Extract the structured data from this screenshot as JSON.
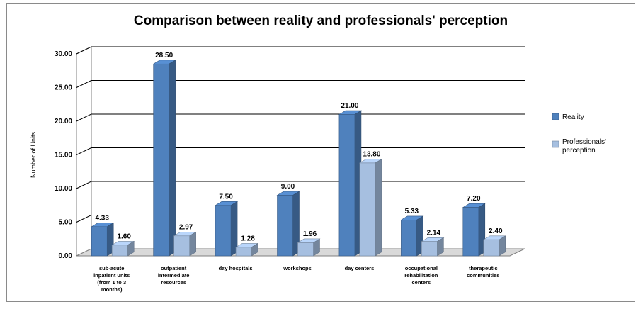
{
  "chart_data": {
    "type": "bar",
    "title": "Comparison between reality and professionals' perception",
    "ylabel": "Number of Units",
    "xlabel": "",
    "ylim": [
      0,
      30
    ],
    "yticks": [
      "0.00",
      "5.00",
      "10.00",
      "15.00",
      "20.00",
      "25.00",
      "30.00"
    ],
    "grid": true,
    "legend_position": "right",
    "categories": [
      [
        "sub-acute",
        "inpatient units",
        "(from 1 to 3",
        "months)"
      ],
      [
        "outpatient",
        "intermediate",
        "resources"
      ],
      [
        "day hospitals"
      ],
      [
        "workshops"
      ],
      [
        "day centers"
      ],
      [
        "occupational",
        "rehabilitation",
        "centers"
      ],
      [
        "therapeutic",
        "communities"
      ]
    ],
    "series": [
      {
        "name": "Reality",
        "color": "#4f81bd",
        "values": [
          4.33,
          28.5,
          7.5,
          9.0,
          21.0,
          5.33,
          7.2
        ],
        "labels": [
          "4.33",
          "28.50",
          "7.50",
          "9.00",
          "21.00",
          "5.33",
          "7.20"
        ]
      },
      {
        "name": "Professionals' perception",
        "legend_lines": [
          "Professionals'",
          "perception"
        ],
        "color": "#a6bfe0",
        "values": [
          1.6,
          2.97,
          1.28,
          1.96,
          13.8,
          2.14,
          2.4
        ],
        "labels": [
          "1.60",
          "2.97",
          "1.28",
          "1.96",
          "13.80",
          "2.14",
          "2.40"
        ]
      }
    ]
  }
}
